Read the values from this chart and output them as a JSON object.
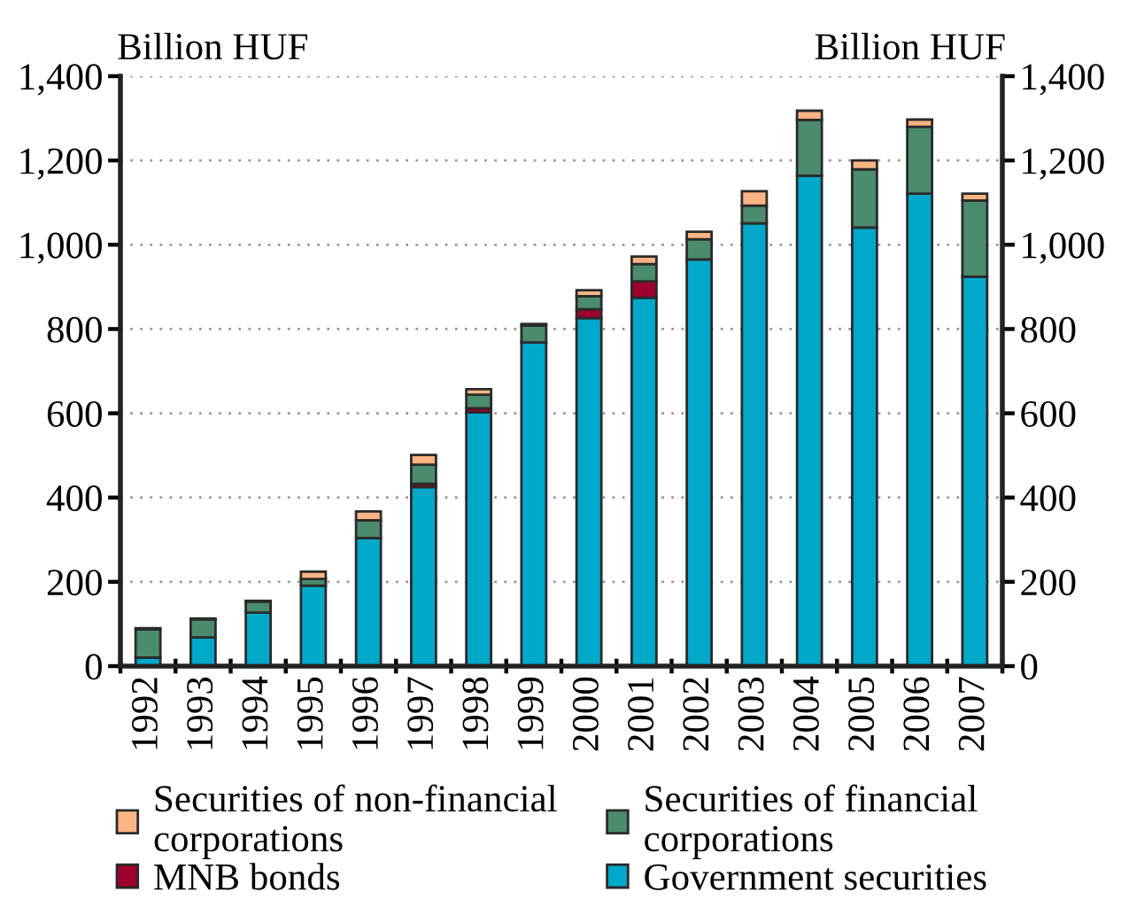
{
  "chart_data": {
    "type": "bar",
    "stacked": true,
    "ylabel": "Billion HUF",
    "y2label": "Billion HUF",
    "categories": [
      "1992",
      "1993",
      "1994",
      "1995",
      "1996",
      "1997",
      "1998",
      "1999",
      "2000",
      "2001",
      "2002",
      "2003",
      "2004",
      "2005",
      "2006",
      "2007"
    ],
    "series": [
      {
        "name": "Government securities",
        "color": "#00a9c9",
        "values": [
          20,
          68,
          127,
          191,
          304,
          425,
          602,
          768,
          826,
          874,
          965,
          1051,
          1164,
          1041,
          1121,
          924
        ]
      },
      {
        "name": "MNB bonds",
        "color": "#9e0030",
        "values": [
          null,
          null,
          null,
          null,
          null,
          8,
          10,
          null,
          21,
          39,
          null,
          null,
          null,
          null,
          null,
          null
        ]
      },
      {
        "name": "Securities of financial corporations",
        "color": "#4b8b6e",
        "values": [
          67,
          43,
          26,
          16,
          42,
          45,
          32,
          40,
          31,
          41,
          48,
          42,
          132,
          138,
          159,
          181
        ]
      },
      {
        "name": "Securities of non-financial corporations",
        "color": "#fbb583",
        "values": [
          3,
          2,
          2,
          17,
          21,
          23,
          13,
          4,
          14,
          18,
          18,
          34,
          22,
          21,
          17,
          16
        ]
      }
    ],
    "ylim": [
      0,
      1400
    ],
    "yticks": [
      0,
      200,
      400,
      600,
      800,
      {
        "value": 1000,
        "label": "1,000"
      },
      {
        "value": 1200,
        "label": "1,200"
      },
      {
        "value": 1400,
        "label": "1,400"
      }
    ],
    "y2lim": [
      0,
      1400
    ],
    "y2ticks": [
      0,
      200,
      400,
      600,
      800,
      {
        "value": 1000,
        "label": "1,000"
      },
      {
        "value": 1200,
        "label": "1,200"
      },
      {
        "value": 1400,
        "label": "1,400"
      }
    ],
    "grid": "y",
    "legend": "bottom"
  }
}
